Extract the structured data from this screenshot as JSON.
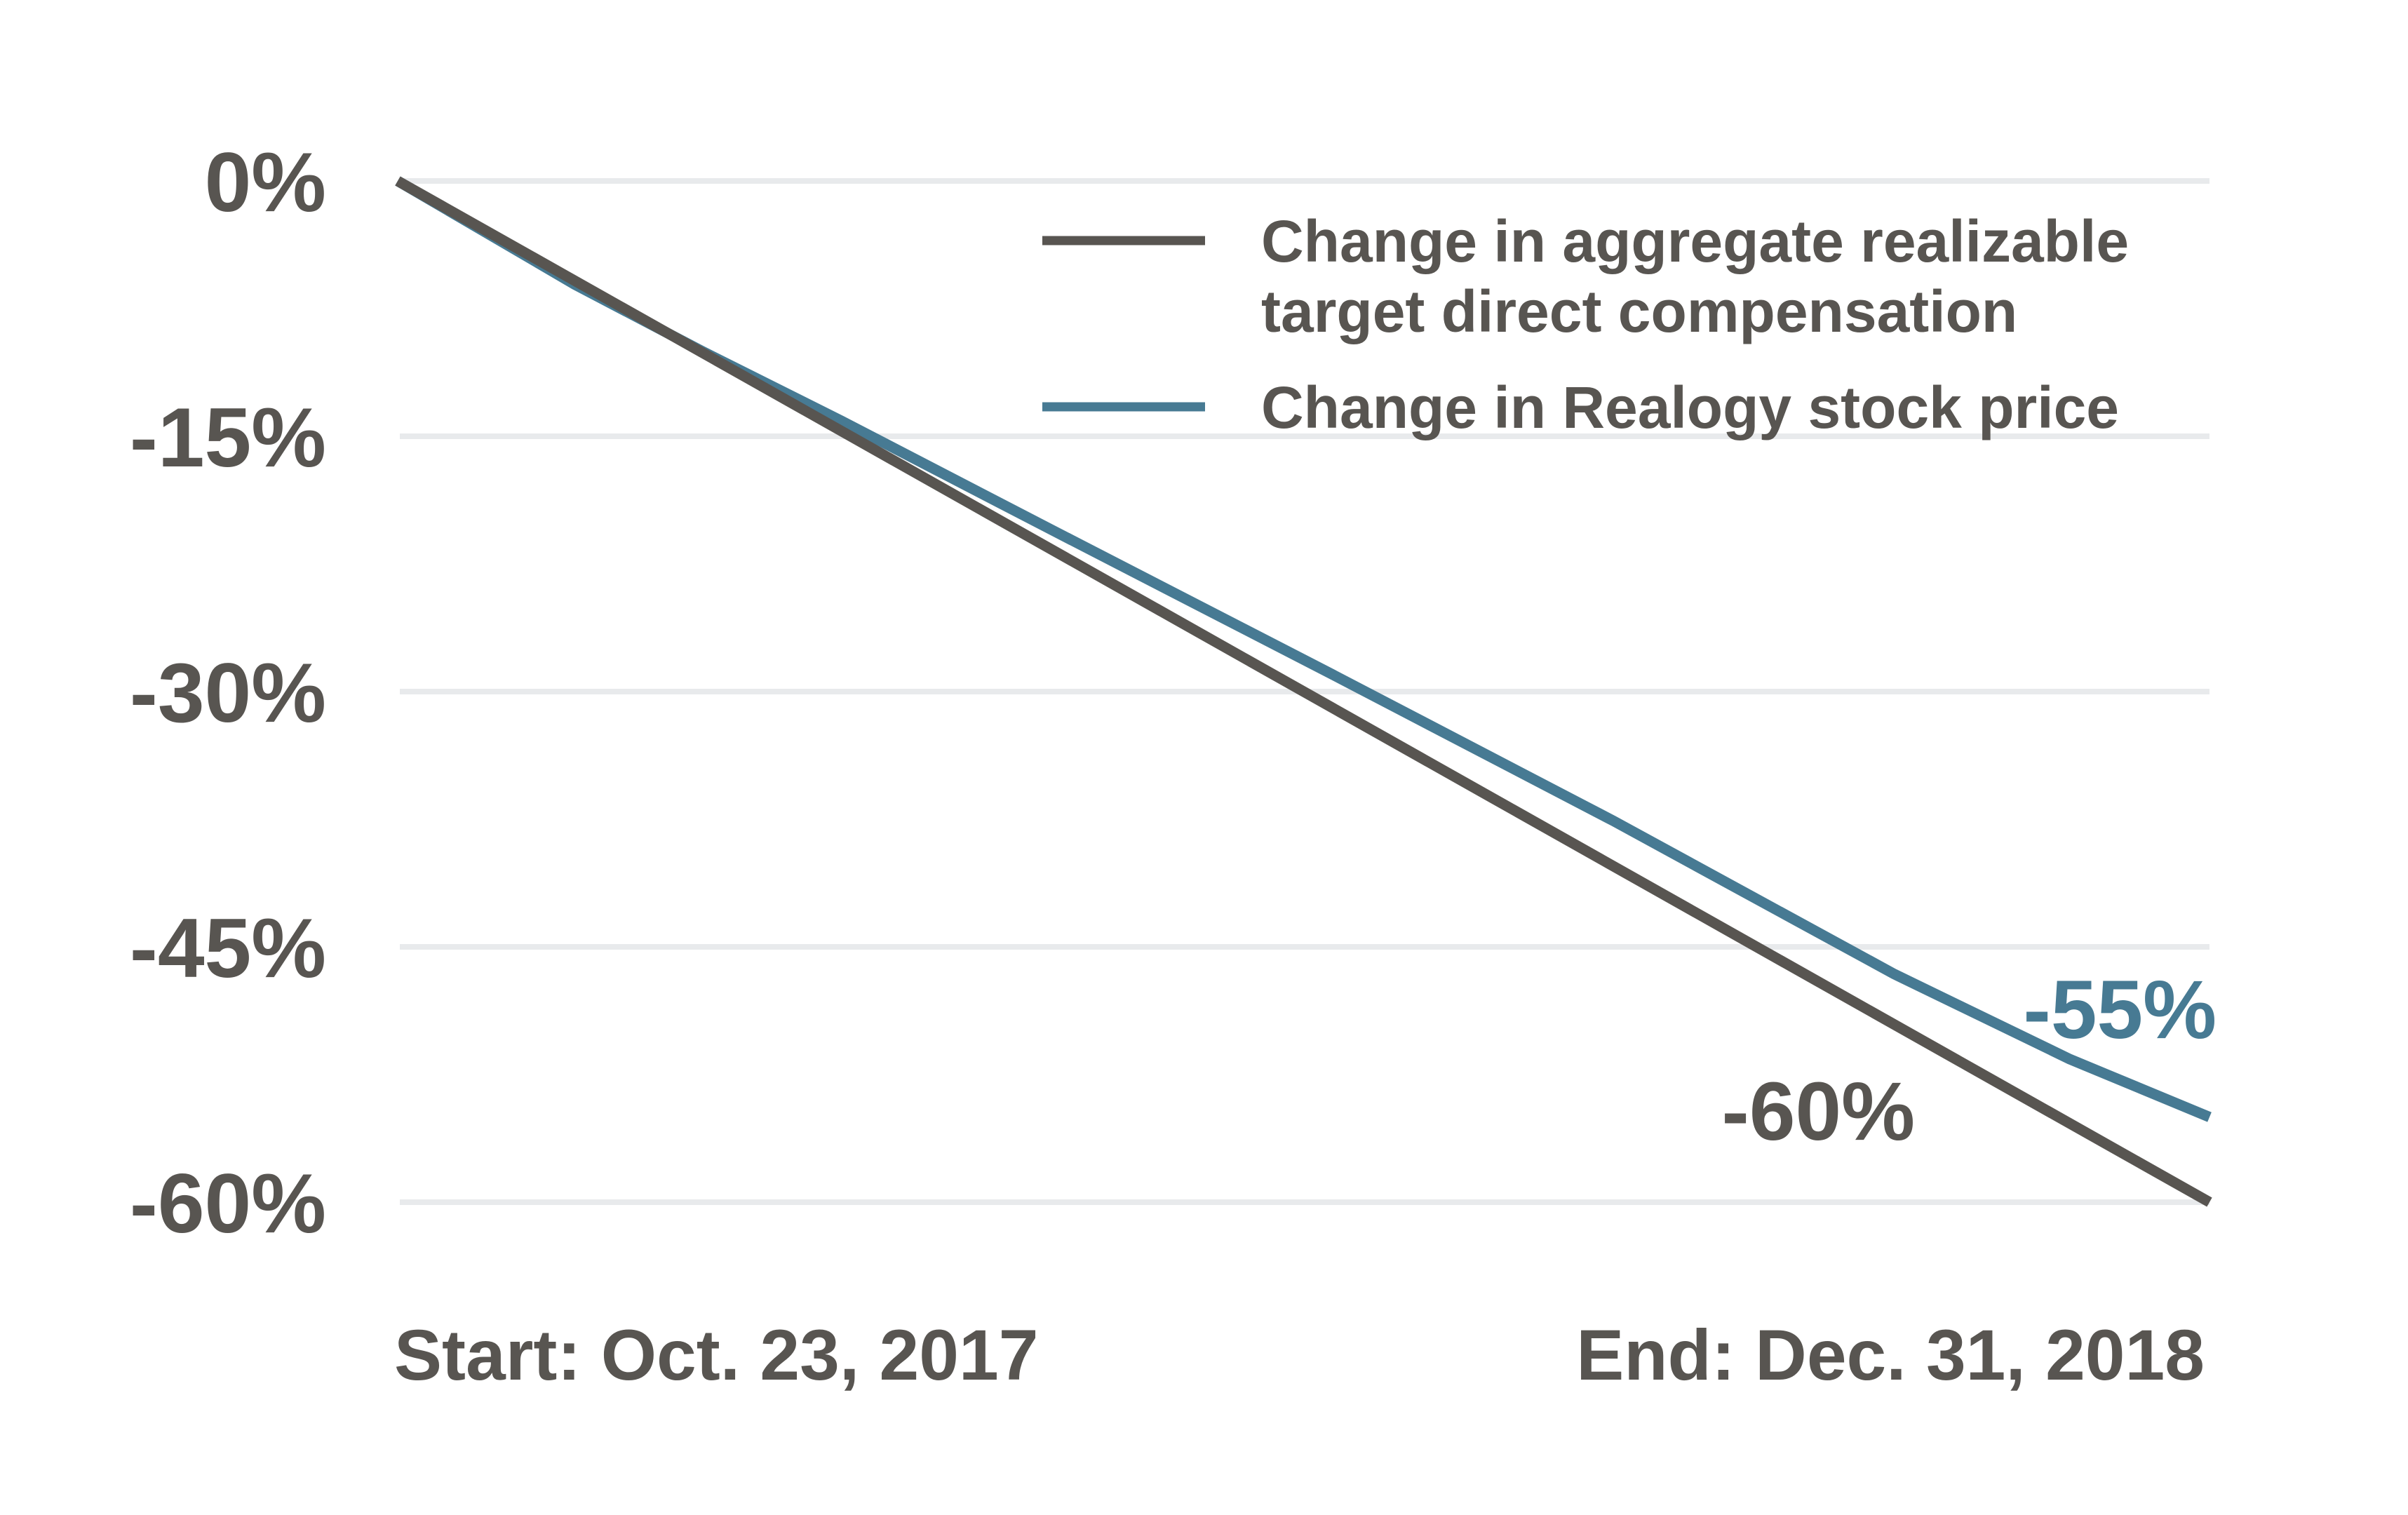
{
  "chart_data": {
    "type": "line",
    "title": "",
    "x_axis": {
      "start_label": "Start: Oct. 23, 2017",
      "end_label": "End: Dec. 31, 2018"
    },
    "y_axis": {
      "ticks": [
        {
          "label": "0%",
          "value": 0
        },
        {
          "label": "-15%",
          "value": -15
        },
        {
          "label": "-30%",
          "value": -30
        },
        {
          "label": "-45%",
          "value": -45
        },
        {
          "label": "-60%",
          "value": -60
        }
      ],
      "ylim": [
        0,
        -60
      ],
      "grid": true
    },
    "series": [
      {
        "name": "Change in aggregate realizable target direct compensation",
        "color": "#585551",
        "end_value": -60,
        "end_label": "-60%",
        "x": [
          0,
          1
        ],
        "y": [
          0,
          -60
        ]
      },
      {
        "name": "Change in Realogy stock price",
        "color": "#477a93",
        "end_value": -55,
        "end_label": "-55%",
        "x": [
          0,
          0.098,
          0.168,
          0.245,
          0.361,
          0.516,
          0.671,
          0.826,
          0.923,
          1.0
        ],
        "y": [
          0,
          -6.1,
          -10.0,
          -14.1,
          -20.5,
          -29.0,
          -37.6,
          -46.6,
          -51.6,
          -55.0
        ]
      }
    ],
    "legend_position": "top-right"
  },
  "legend": {
    "entries": [
      {
        "lines": [
          "Change in aggregate realizable",
          "target direct compensation"
        ]
      },
      {
        "lines": [
          "Change in Realogy stock price"
        ]
      }
    ]
  },
  "colors": {
    "grid": "#e8eaec",
    "text": "#585551",
    "accent_blue": "#477a93",
    "background": "#ffffff"
  }
}
